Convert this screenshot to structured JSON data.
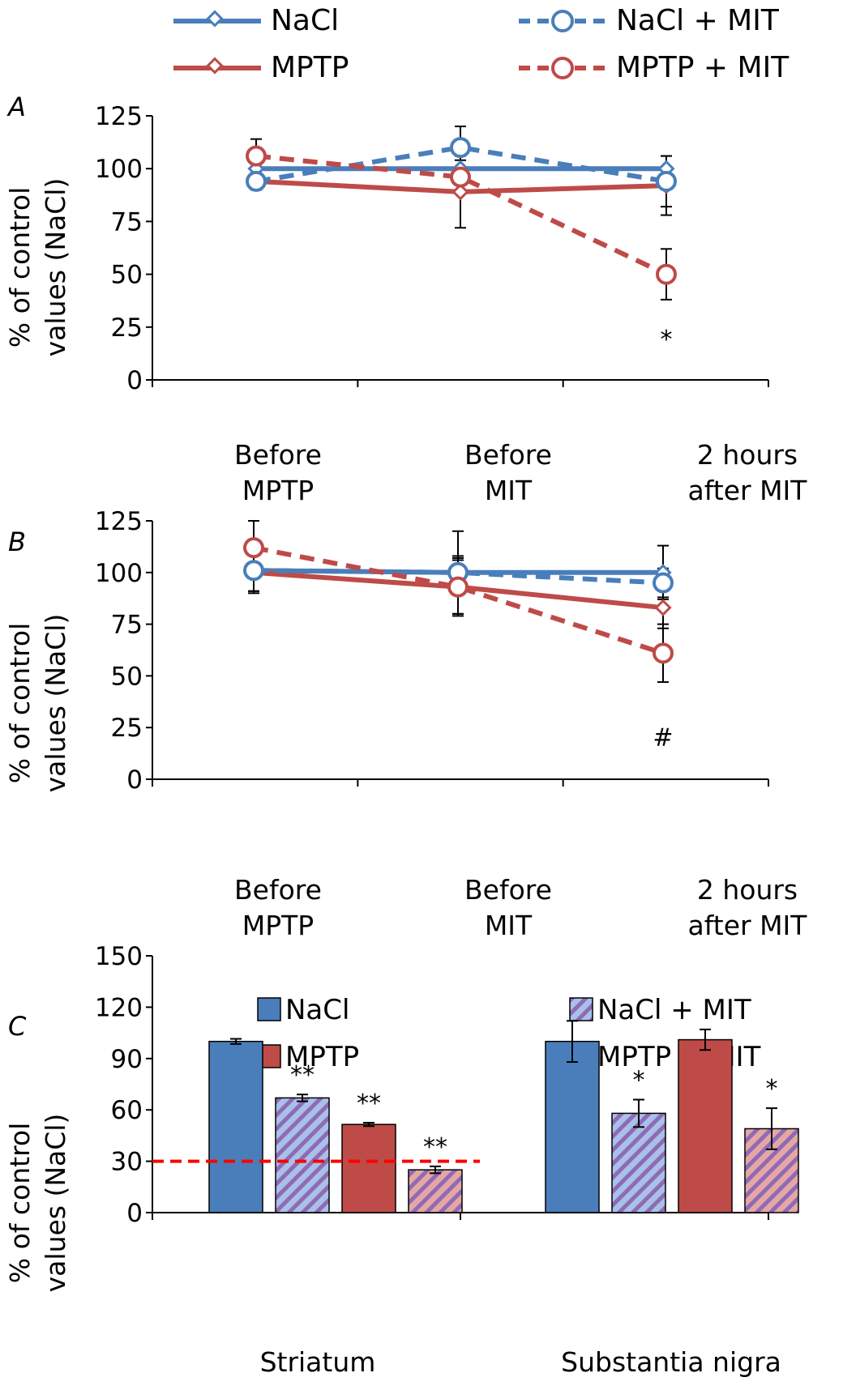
{
  "colors": {
    "nacl": "#4a7ebb",
    "mptp": "#be4b48",
    "nacl_hatch_bg": "#a9c0e8",
    "mptp_hatch_bg": "#e6a6a4",
    "hatch_stripe": "#8e6bb5",
    "threshold_line": "#ff0000",
    "axis": "#000000"
  },
  "legend_top": {
    "items": [
      {
        "label": "NaCl",
        "series": "NaCl",
        "style": "solid-diamond"
      },
      {
        "label": "NaCl + MIT",
        "series": "NaCl + MIT",
        "style": "dashed-circle"
      },
      {
        "label": "MPTP",
        "series": "MPTP",
        "style": "solid-diamond"
      },
      {
        "label": "MPTP + MIT",
        "series": "MPTP + MIT",
        "style": "dashed-circle"
      }
    ]
  },
  "legend_c": {
    "items": [
      {
        "label": "NaCl",
        "fill": "solid-blue"
      },
      {
        "label": "NaCl + MIT",
        "fill": "hatch-blue"
      },
      {
        "label": "MPTP",
        "fill": "solid-red"
      },
      {
        "label": "MPTP + MIT",
        "fill": "hatch-red"
      }
    ]
  },
  "chart_data": [
    {
      "panel_label": "A",
      "type": "line",
      "ylabel": [
        "% of control",
        "values (NaCl)"
      ],
      "categories": [
        [
          "Before",
          "MPTP"
        ],
        [
          "Before",
          "MIT"
        ],
        [
          "2 hours",
          "after MIT"
        ]
      ],
      "ylim": [
        0,
        125
      ],
      "yticks": [
        0,
        25,
        50,
        75,
        100,
        125
      ],
      "series": [
        {
          "name": "NaCl",
          "values": [
            100,
            100,
            100
          ],
          "errors": [
            6,
            6,
            6
          ],
          "dashed": false,
          "marker": "diamond"
        },
        {
          "name": "MPTP",
          "values": [
            94,
            89,
            92
          ],
          "errors": [
            4,
            17,
            14
          ],
          "dashed": false,
          "marker": "diamond"
        },
        {
          "name": "NaCl + MIT",
          "values": [
            94,
            110,
            94
          ],
          "errors": [
            4,
            10,
            12
          ],
          "dashed": true,
          "marker": "circle"
        },
        {
          "name": "MPTP + MIT",
          "values": [
            106,
            96,
            50
          ],
          "errors": [
            8,
            8,
            12
          ],
          "dashed": true,
          "marker": "circle"
        }
      ],
      "annotations": [
        {
          "text": "*",
          "category_index": 2,
          "y": 20
        }
      ]
    },
    {
      "panel_label": "B",
      "type": "line",
      "ylabel": [
        "% of control",
        "values (NaCl)"
      ],
      "categories": [
        [
          "Before",
          "MPTP"
        ],
        [
          "Before",
          "MIT"
        ],
        [
          "2 hours",
          "after MIT"
        ]
      ],
      "ylim": [
        0,
        125
      ],
      "yticks": [
        0,
        25,
        50,
        75,
        100,
        125
      ],
      "series": [
        {
          "name": "NaCl",
          "values": [
            101,
            100,
            100
          ],
          "errors": [
            10,
            20,
            13
          ],
          "dashed": false,
          "marker": "diamond"
        },
        {
          "name": "MPTP",
          "values": [
            100,
            93,
            83
          ],
          "errors": [
            10,
            14,
            10
          ],
          "dashed": false,
          "marker": "diamond"
        },
        {
          "name": "NaCl + MIT",
          "values": [
            101,
            100,
            95
          ],
          "errors": [
            10,
            8,
            7
          ],
          "dashed": true,
          "marker": "circle"
        },
        {
          "name": "MPTP + MIT",
          "values": [
            112,
            93,
            61
          ],
          "errors": [
            13,
            13,
            14
          ],
          "dashed": true,
          "marker": "circle"
        }
      ],
      "annotations": [
        {
          "text": "#",
          "category_index": 2,
          "y": 21
        }
      ]
    },
    {
      "panel_label": "C",
      "type": "bar",
      "ylabel": [
        "% of control",
        "values (NaCl)"
      ],
      "categories": [
        "Striatum",
        "Substantia nigra"
      ],
      "ylim": [
        0,
        150
      ],
      "yticks": [
        0,
        30,
        60,
        90,
        120,
        150
      ],
      "reference_line": 30,
      "series": [
        {
          "name": "NaCl",
          "values": [
            100,
            100
          ],
          "errors": [
            1.5,
            12
          ],
          "fill": "solid-blue",
          "labels": [
            "",
            ""
          ]
        },
        {
          "name": "NaCl + MIT",
          "values": [
            67,
            58
          ],
          "errors": [
            2,
            8
          ],
          "fill": "hatch-blue",
          "labels": [
            "**",
            "*"
          ]
        },
        {
          "name": "MPTP",
          "values": [
            51.5,
            101
          ],
          "errors": [
            1,
            6
          ],
          "fill": "solid-red",
          "labels": [
            "**",
            ""
          ]
        },
        {
          "name": "MPTP + MIT",
          "values": [
            25,
            49
          ],
          "errors": [
            2,
            12
          ],
          "fill": "hatch-red",
          "labels": [
            "**",
            "*"
          ]
        }
      ]
    }
  ]
}
